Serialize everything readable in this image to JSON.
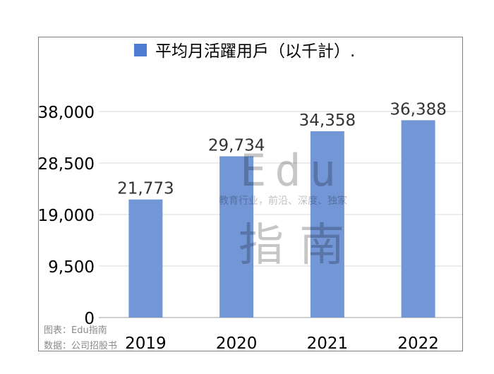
{
  "chart_data": {
    "type": "bar",
    "title": "",
    "legend": {
      "label": "平均月活躍用戶（以千計）.",
      "placement": "top"
    },
    "categories": [
      "2019",
      "2020",
      "2021",
      "2022"
    ],
    "series": [
      {
        "name": "平均月活躍用戶（以千計）.",
        "values": [
          21773,
          29734,
          34358,
          36388
        ],
        "color": "#7396d6"
      }
    ],
    "data_labels": [
      "21,773",
      "29,734",
      "34,358",
      "36,388"
    ],
    "yticks": [
      0,
      9500,
      19000,
      28500,
      38000
    ],
    "ytick_labels": [
      "0",
      "9,500",
      "19,000",
      "28,500",
      "38,000"
    ],
    "ylim": [
      0,
      38000
    ],
    "grid": true
  },
  "watermark": {
    "latin": "Edu",
    "tagline": "教育行业，前沿、深度、独家",
    "chinese": "指南"
  },
  "source": {
    "chart_credit": "图表：Edu指南",
    "data_credit": "数据：公司招股书"
  }
}
